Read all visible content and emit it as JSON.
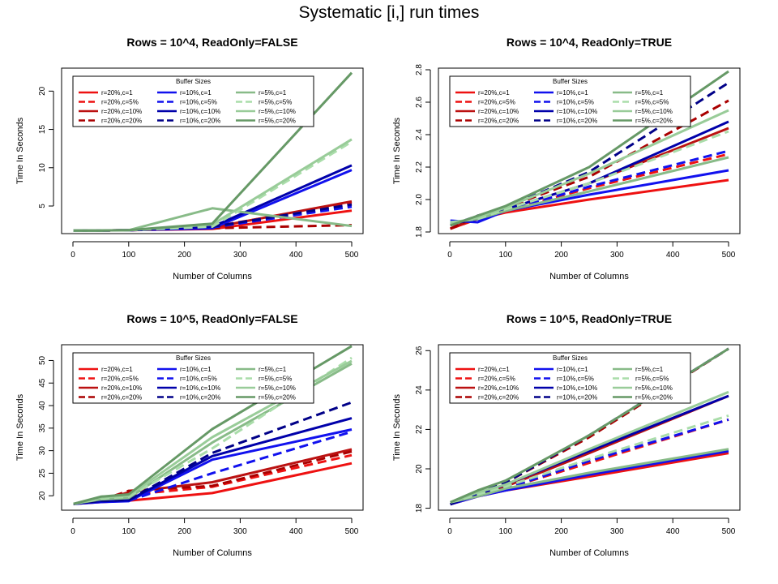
{
  "figure_title": "Systematic [i,] run times",
  "chart_data": [
    {
      "type": "line",
      "title": "Rows = 10^4, ReadOnly=FALSE",
      "xlabel": "Number of Columns",
      "ylabel": "Time In Seconds",
      "xlim": [
        0,
        500
      ],
      "ylim": [
        1.4,
        23.0
      ],
      "xticks": [
        "0",
        "100",
        "200",
        "300",
        "400",
        "500"
      ],
      "yticks": [
        "5",
        "10",
        "15",
        "20"
      ],
      "x": [
        1,
        50,
        100,
        250,
        500
      ],
      "legend_title": "Buffer Sizes",
      "series": [
        {
          "name": "r=20%,c=1",
          "color": "#ee1111",
          "dash": "solid",
          "values": [
            1.8,
            1.8,
            1.85,
            2.0,
            4.4
          ]
        },
        {
          "name": "r=20%,c=5%",
          "color": "#ee1111",
          "dash": "dash",
          "values": [
            1.8,
            1.8,
            1.85,
            2.3,
            5.4
          ]
        },
        {
          "name": "r=20%,c=10%",
          "color": "#bb1111",
          "dash": "solid",
          "values": [
            1.8,
            1.8,
            1.85,
            2.2,
            5.6
          ]
        },
        {
          "name": "r=20%,c=20%",
          "color": "#aa0000",
          "dash": "dash",
          "values": [
            1.8,
            1.8,
            1.85,
            2.1,
            2.5
          ]
        },
        {
          "name": "r=10%,c=1",
          "color": "#1111ee",
          "dash": "solid",
          "values": [
            1.8,
            1.8,
            1.85,
            2.1,
            9.7
          ]
        },
        {
          "name": "r=10%,c=5%",
          "color": "#1111ee",
          "dash": "dash",
          "values": [
            1.8,
            1.8,
            1.85,
            2.2,
            4.9
          ]
        },
        {
          "name": "r=10%,c=10%",
          "color": "#0000aa",
          "dash": "solid",
          "values": [
            1.8,
            1.8,
            1.85,
            2.3,
            10.3
          ]
        },
        {
          "name": "r=10%,c=20%",
          "color": "#000088",
          "dash": "dash",
          "values": [
            1.8,
            1.8,
            1.85,
            2.3,
            5.2
          ]
        },
        {
          "name": "r=5%,c=1",
          "color": "#88bb88",
          "dash": "solid",
          "values": [
            1.8,
            1.8,
            1.85,
            4.7,
            2.4
          ]
        },
        {
          "name": "r=5%,c=5%",
          "color": "#aaddaa",
          "dash": "dash",
          "values": [
            1.8,
            1.8,
            1.85,
            2.3,
            13.4
          ]
        },
        {
          "name": "r=5%,c=10%",
          "color": "#99cc99",
          "dash": "solid",
          "values": [
            1.8,
            1.8,
            1.85,
            2.6,
            13.7
          ]
        },
        {
          "name": "r=5%,c=20%",
          "color": "#669966",
          "dash": "solid",
          "values": [
            1.8,
            1.8,
            1.85,
            2.7,
            22.4
          ]
        }
      ]
    },
    {
      "type": "line",
      "title": "Rows = 10^4, ReadOnly=TRUE",
      "xlabel": "Number of Columns",
      "ylabel": "Time In Seconds",
      "xlim": [
        0,
        500
      ],
      "ylim": [
        1.79,
        2.81
      ],
      "xticks": [
        "0",
        "100",
        "200",
        "300",
        "400",
        "500"
      ],
      "yticks": [
        "1.8",
        "2.0",
        "2.2",
        "2.4",
        "2.6",
        "2.8"
      ],
      "x": [
        1,
        50,
        100,
        250,
        500
      ],
      "legend_title": "Buffer Sizes",
      "series": [
        {
          "name": "r=20%,c=1",
          "color": "#ee1111",
          "dash": "solid",
          "values": [
            1.82,
            1.88,
            1.92,
            2.0,
            2.12
          ]
        },
        {
          "name": "r=20%,c=5%",
          "color": "#ee1111",
          "dash": "dash",
          "values": [
            1.82,
            1.88,
            1.93,
            2.07,
            2.28
          ]
        },
        {
          "name": "r=20%,c=10%",
          "color": "#bb1111",
          "dash": "solid",
          "values": [
            1.82,
            1.89,
            1.94,
            2.1,
            2.44
          ]
        },
        {
          "name": "r=20%,c=20%",
          "color": "#aa0000",
          "dash": "dash",
          "values": [
            1.82,
            1.9,
            1.95,
            2.14,
            2.61
          ]
        },
        {
          "name": "r=10%,c=1",
          "color": "#1111ee",
          "dash": "solid",
          "values": [
            1.87,
            1.86,
            1.93,
            2.03,
            2.18
          ]
        },
        {
          "name": "r=10%,c=5%",
          "color": "#1111ee",
          "dash": "dash",
          "values": [
            1.86,
            1.87,
            1.93,
            2.08,
            2.3
          ]
        },
        {
          "name": "r=10%,c=10%",
          "color": "#0000aa",
          "dash": "solid",
          "values": [
            1.85,
            1.88,
            1.94,
            2.1,
            2.48
          ]
        },
        {
          "name": "r=10%,c=20%",
          "color": "#000088",
          "dash": "dash",
          "values": [
            1.84,
            1.9,
            1.95,
            2.17,
            2.72
          ]
        },
        {
          "name": "r=5%,c=1",
          "color": "#88bb88",
          "dash": "solid",
          "values": [
            1.86,
            1.88,
            1.93,
            2.05,
            2.26
          ]
        },
        {
          "name": "r=5%,c=5%",
          "color": "#aaddaa",
          "dash": "dash",
          "values": [
            1.86,
            1.88,
            1.94,
            2.1,
            2.42
          ]
        },
        {
          "name": "r=5%,c=10%",
          "color": "#99cc99",
          "dash": "solid",
          "values": [
            1.85,
            1.89,
            1.95,
            2.16,
            2.55
          ]
        },
        {
          "name": "r=5%,c=20%",
          "color": "#669966",
          "dash": "solid",
          "values": [
            1.84,
            1.9,
            1.96,
            2.2,
            2.79
          ]
        }
      ]
    },
    {
      "type": "line",
      "title": "Rows = 10^5, ReadOnly=FALSE",
      "xlabel": "Number of Columns",
      "ylabel": "Time In Seconds",
      "xlim": [
        0,
        500
      ],
      "ylim": [
        16.8,
        53.5
      ],
      "xticks": [
        "0",
        "100",
        "200",
        "300",
        "400",
        "500"
      ],
      "yticks": [
        "20",
        "25",
        "30",
        "35",
        "40",
        "45",
        "50"
      ],
      "x": [
        1,
        50,
        100,
        250,
        500
      ],
      "legend_title": "Buffer Sizes",
      "series": [
        {
          "name": "r=20%,c=1",
          "color": "#ee1111",
          "dash": "solid",
          "values": [
            18.2,
            18.6,
            18.9,
            20.6,
            27.2
          ]
        },
        {
          "name": "r=20%,c=5%",
          "color": "#ee1111",
          "dash": "dash",
          "values": [
            18.2,
            18.8,
            20.2,
            22.0,
            29.0
          ]
        },
        {
          "name": "r=20%,c=10%",
          "color": "#bb1111",
          "dash": "solid",
          "values": [
            18.2,
            18.9,
            20.8,
            23.0,
            30.3
          ]
        },
        {
          "name": "r=20%,c=20%",
          "color": "#aa0000",
          "dash": "dash",
          "values": [
            18.2,
            19.0,
            21.1,
            22.2,
            29.8
          ]
        },
        {
          "name": "r=10%,c=1",
          "color": "#1111ee",
          "dash": "solid",
          "values": [
            18.2,
            18.6,
            18.8,
            28.0,
            34.7
          ]
        },
        {
          "name": "r=10%,c=5%",
          "color": "#1111ee",
          "dash": "dash",
          "values": [
            18.2,
            18.7,
            18.9,
            25.0,
            34.2
          ]
        },
        {
          "name": "r=10%,c=10%",
          "color": "#0000aa",
          "dash": "solid",
          "values": [
            18.2,
            18.8,
            19.0,
            28.8,
            37.2
          ]
        },
        {
          "name": "r=10%,c=20%",
          "color": "#000088",
          "dash": "dash",
          "values": [
            18.2,
            18.9,
            19.1,
            29.5,
            40.7
          ]
        },
        {
          "name": "r=5%,c=1",
          "color": "#88bb88",
          "dash": "solid",
          "values": [
            18.2,
            19.2,
            19.5,
            31.8,
            49.3
          ]
        },
        {
          "name": "r=5%,c=5%",
          "color": "#aaddaa",
          "dash": "dash",
          "values": [
            18.2,
            19.4,
            19.8,
            30.5,
            50.6
          ]
        },
        {
          "name": "r=5%,c=10%",
          "color": "#99cc99",
          "dash": "solid",
          "values": [
            18.2,
            19.6,
            20.0,
            33.0,
            49.9
          ]
        },
        {
          "name": "r=5%,c=20%",
          "color": "#669966",
          "dash": "solid",
          "values": [
            18.2,
            19.8,
            20.3,
            34.8,
            53.2
          ]
        }
      ]
    },
    {
      "type": "line",
      "title": "Rows = 10^5, ReadOnly=TRUE",
      "xlabel": "Number of Columns",
      "ylabel": "Time In Seconds",
      "xlim": [
        0,
        500
      ],
      "ylim": [
        17.9,
        26.3
      ],
      "xticks": [
        "0",
        "100",
        "200",
        "300",
        "400",
        "500"
      ],
      "yticks": [
        "18",
        "20",
        "22",
        "24",
        "26"
      ],
      "x": [
        1,
        50,
        100,
        250,
        500
      ],
      "legend_title": "Buffer Sizes",
      "series": [
        {
          "name": "r=20%,c=1",
          "color": "#ee1111",
          "dash": "solid",
          "values": [
            18.2,
            18.6,
            18.9,
            19.6,
            20.8
          ]
        },
        {
          "name": "r=20%,c=5%",
          "color": "#ee1111",
          "dash": "dash",
          "values": [
            18.2,
            18.7,
            19.0,
            20.3,
            22.5
          ]
        },
        {
          "name": "r=20%,c=10%",
          "color": "#bb1111",
          "dash": "solid",
          "values": [
            18.2,
            18.7,
            19.1,
            20.8,
            23.7
          ]
        },
        {
          "name": "r=20%,c=20%",
          "color": "#aa0000",
          "dash": "dash",
          "values": [
            18.2,
            18.8,
            19.3,
            21.6,
            26.1
          ]
        },
        {
          "name": "r=10%,c=1",
          "color": "#1111ee",
          "dash": "solid",
          "values": [
            18.2,
            18.6,
            18.9,
            19.7,
            20.9
          ]
        },
        {
          "name": "r=10%,c=5%",
          "color": "#1111ee",
          "dash": "dash",
          "values": [
            18.2,
            18.7,
            19.0,
            20.4,
            22.5
          ]
        },
        {
          "name": "r=10%,c=10%",
          "color": "#0000aa",
          "dash": "solid",
          "values": [
            18.2,
            18.7,
            19.2,
            20.9,
            23.7
          ]
        },
        {
          "name": "r=10%,c=20%",
          "color": "#000088",
          "dash": "dash",
          "values": [
            18.2,
            18.8,
            19.3,
            21.7,
            26.1
          ]
        },
        {
          "name": "r=5%,c=1",
          "color": "#88bb88",
          "dash": "solid",
          "values": [
            18.3,
            18.6,
            19.0,
            19.8,
            21.0
          ]
        },
        {
          "name": "r=5%,c=5%",
          "color": "#aaddaa",
          "dash": "dash",
          "values": [
            18.3,
            18.7,
            19.1,
            20.5,
            22.7
          ]
        },
        {
          "name": "r=5%,c=10%",
          "color": "#99cc99",
          "dash": "solid",
          "values": [
            18.3,
            18.8,
            19.2,
            21.0,
            23.9
          ]
        },
        {
          "name": "r=5%,c=20%",
          "color": "#669966",
          "dash": "solid",
          "values": [
            18.3,
            18.9,
            19.4,
            21.7,
            26.1
          ]
        }
      ]
    }
  ]
}
